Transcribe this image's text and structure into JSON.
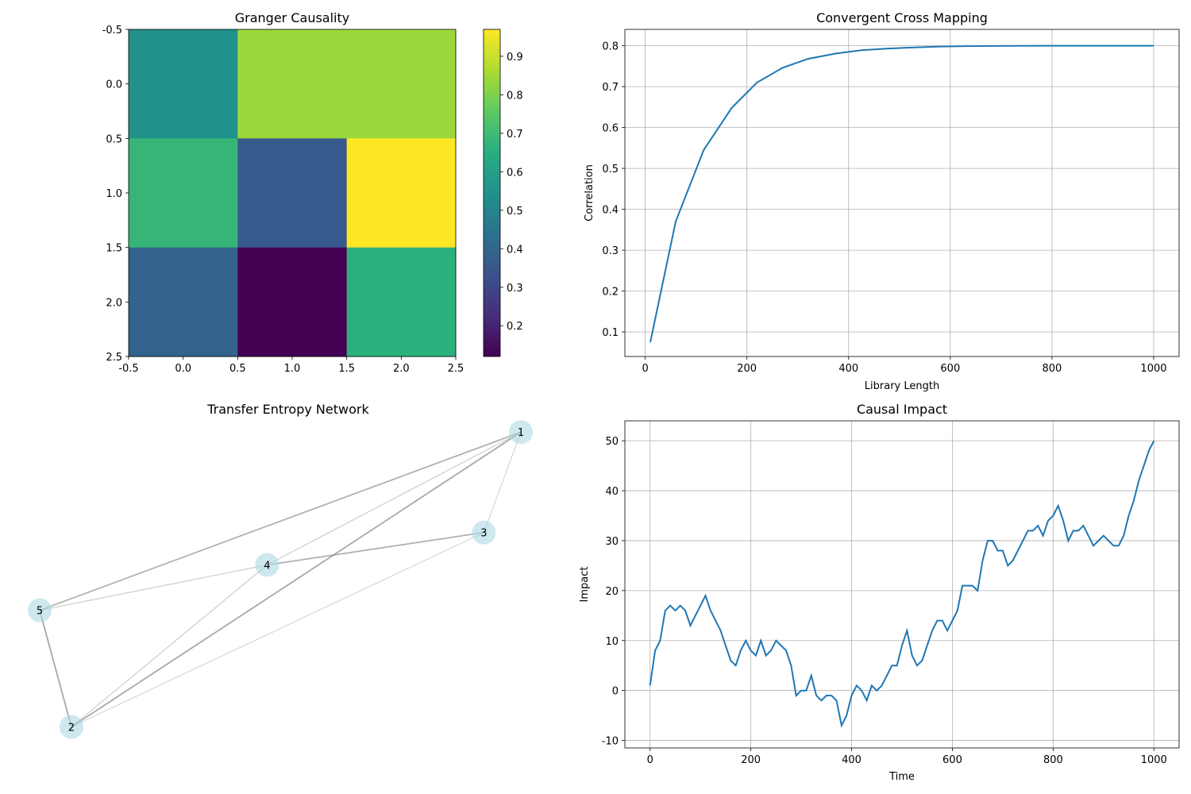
{
  "chart_data": [
    {
      "type": "heatmap",
      "title": "Granger Causality",
      "colormap": "viridis",
      "matrix": [
        [
          0.55,
          0.84,
          0.84
        ],
        [
          0.68,
          0.36,
          0.97
        ],
        [
          0.39,
          0.12,
          0.66
        ]
      ],
      "xlim": [
        -0.5,
        2.5
      ],
      "ylim": [
        2.5,
        -0.5
      ],
      "xticks": [
        "-0.5",
        "0.0",
        "0.5",
        "1.0",
        "1.5",
        "2.0",
        "2.5"
      ],
      "yticks": [
        "-0.5",
        "0.0",
        "0.5",
        "1.0",
        "1.5",
        "2.0",
        "2.5"
      ],
      "colorbar": {
        "range": [
          0.12,
          0.97
        ],
        "ticks": [
          "0.2",
          "0.3",
          "0.4",
          "0.5",
          "0.6",
          "0.7",
          "0.8",
          "0.9"
        ]
      }
    },
    {
      "type": "line",
      "title": "Convergent Cross Mapping",
      "xlabel": "Library Length",
      "ylabel": "Correlation",
      "xlim": [
        -40,
        1050
      ],
      "ylim": [
        0.04,
        0.84
      ],
      "xticks": [
        "0",
        "200",
        "400",
        "600",
        "800",
        "1000"
      ],
      "yticks": [
        "0.1",
        "0.2",
        "0.3",
        "0.4",
        "0.5",
        "0.6",
        "0.7",
        "0.8"
      ],
      "grid": true,
      "color": "#1f77b4",
      "x": [
        10,
        60,
        115,
        170,
        220,
        270,
        320,
        375,
        425,
        475,
        530,
        580,
        630,
        680,
        730,
        780,
        830,
        890,
        940,
        1000
      ],
      "y": [
        0.075,
        0.37,
        0.545,
        0.648,
        0.71,
        0.746,
        0.768,
        0.781,
        0.789,
        0.793,
        0.796,
        0.798,
        0.799,
        0.7995,
        0.7998,
        0.8,
        0.8,
        0.8,
        0.8,
        0.8
      ]
    },
    {
      "type": "network",
      "title": "Transfer Entropy Network",
      "node_color": "#add8e6",
      "nodes": [
        {
          "id": "1",
          "x": 0.94,
          "y": 0.97
        },
        {
          "id": "2",
          "x": 0.09,
          "y": 0.06
        },
        {
          "id": "3",
          "x": 0.87,
          "y": 0.66
        },
        {
          "id": "4",
          "x": 0.46,
          "y": 0.56
        },
        {
          "id": "5",
          "x": 0.03,
          "y": 0.42
        }
      ],
      "edges": [
        {
          "source": "1",
          "target": "5",
          "weight": 0.8
        },
        {
          "source": "1",
          "target": "2",
          "weight": 0.9
        },
        {
          "source": "1",
          "target": "4",
          "weight": 0.3
        },
        {
          "source": "1",
          "target": "3",
          "weight": 0.2
        },
        {
          "source": "4",
          "target": "3",
          "weight": 0.8
        },
        {
          "source": "4",
          "target": "5",
          "weight": 0.3
        },
        {
          "source": "4",
          "target": "2",
          "weight": 0.3
        },
        {
          "source": "5",
          "target": "2",
          "weight": 0.9
        },
        {
          "source": "2",
          "target": "3",
          "weight": 0.2
        }
      ]
    },
    {
      "type": "line",
      "title": "Causal Impact",
      "xlabel": "Time",
      "ylabel": "Impact",
      "xlim": [
        -50,
        1050
      ],
      "ylim": [
        -11.5,
        54
      ],
      "xticks": [
        "0",
        "200",
        "400",
        "600",
        "800",
        "1000"
      ],
      "yticks": [
        "-10",
        "0",
        "10",
        "20",
        "30",
        "40",
        "50"
      ],
      "grid": true,
      "color": "#1f77b4",
      "x": [
        0,
        10,
        20,
        30,
        40,
        50,
        60,
        70,
        80,
        90,
        100,
        110,
        120,
        130,
        140,
        150,
        160,
        170,
        180,
        190,
        200,
        210,
        220,
        230,
        240,
        250,
        260,
        270,
        280,
        290,
        300,
        310,
        320,
        330,
        340,
        350,
        360,
        370,
        380,
        390,
        400,
        410,
        420,
        430,
        440,
        450,
        460,
        470,
        480,
        490,
        500,
        510,
        520,
        530,
        540,
        550,
        560,
        570,
        580,
        590,
        600,
        610,
        620,
        630,
        640,
        650,
        660,
        670,
        680,
        690,
        700,
        710,
        720,
        730,
        740,
        750,
        760,
        770,
        780,
        790,
        800,
        810,
        820,
        830,
        840,
        850,
        860,
        870,
        880,
        890,
        900,
        910,
        920,
        930,
        940,
        950,
        960,
        970,
        980,
        990,
        1000
      ],
      "y": [
        1,
        8,
        10,
        16,
        17,
        16,
        17,
        16,
        13,
        15,
        17,
        19,
        16,
        14,
        12,
        9,
        6,
        5,
        8,
        10,
        8,
        7,
        10,
        7,
        8,
        10,
        9,
        8,
        5,
        -1,
        0,
        0,
        3,
        -1,
        -2,
        -1,
        -1,
        -2,
        -7,
        -5,
        -1,
        1,
        0,
        -2,
        1,
        0,
        1,
        3,
        5,
        5,
        9,
        12,
        7,
        5,
        6,
        9,
        12,
        14,
        14,
        12,
        14,
        16,
        21,
        21,
        21,
        20,
        26,
        30,
        30,
        28,
        28,
        25,
        26,
        28,
        30,
        32,
        32,
        33,
        31,
        34,
        35,
        37,
        34,
        30,
        32,
        32,
        33,
        31,
        29,
        30,
        31,
        30,
        29,
        29,
        31,
        35,
        38,
        42,
        45,
        48,
        50
      ]
    }
  ]
}
